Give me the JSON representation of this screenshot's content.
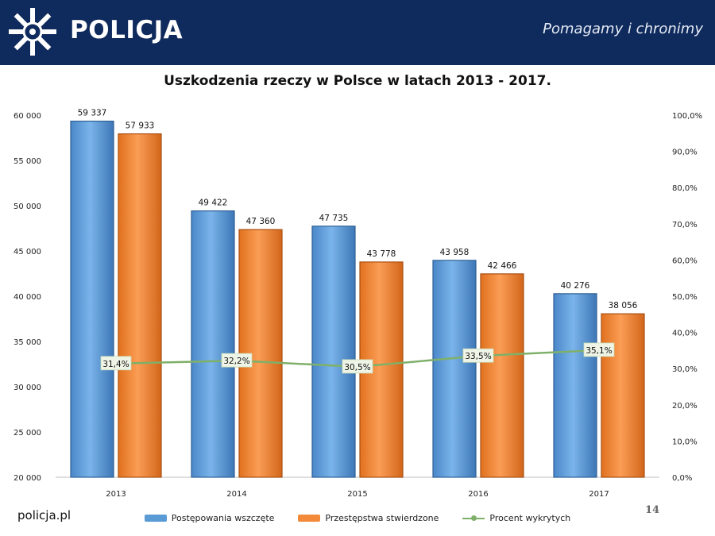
{
  "header": {
    "brand": "POLICJA",
    "slogan": "Pomagamy i chronimy",
    "colors": {
      "bar_bg": "#0f2a5c",
      "text": "#ffffff"
    }
  },
  "footer": {
    "site": "policja.pl",
    "page_number": "14"
  },
  "chart_data": {
    "type": "bar",
    "title": "Uszkodzenia rzeczy w Polsce w latach 2013 - 2017.",
    "categories": [
      "2013",
      "2014",
      "2015",
      "2016",
      "2017"
    ],
    "series": [
      {
        "name": "Postępowania wszczęte",
        "type": "bar",
        "axis": "left",
        "color": "#5b9bd5",
        "values": [
          59337,
          49422,
          47735,
          43958,
          40276
        ],
        "labels": [
          "59 337",
          "49 422",
          "47 735",
          "43 958",
          "40 276"
        ]
      },
      {
        "name": "Przestępstwa stwierdzone",
        "type": "bar",
        "axis": "left",
        "color": "#f28a3a",
        "values": [
          57933,
          47360,
          43778,
          42466,
          38056
        ],
        "labels": [
          "57 933",
          "47 360",
          "43 778",
          "42 466",
          "38 056"
        ]
      },
      {
        "name": "Procent wykrytych",
        "type": "line",
        "axis": "right",
        "color": "#7fb069",
        "values": [
          31.4,
          32.2,
          30.5,
          33.5,
          35.1
        ],
        "labels": [
          "31,4%",
          "32,2%",
          "30,5%",
          "33,5%",
          "35,1%"
        ]
      }
    ],
    "y_left": {
      "ylim": [
        20000,
        60000
      ],
      "ticks": [
        20000,
        25000,
        30000,
        35000,
        40000,
        45000,
        50000,
        55000,
        60000
      ],
      "tick_labels": [
        "20 000",
        "25 000",
        "30 000",
        "35 000",
        "40 000",
        "45 000",
        "50 000",
        "55 000",
        "60 000"
      ]
    },
    "y_right": {
      "ylim": [
        0,
        100
      ],
      "ticks": [
        0,
        10,
        20,
        30,
        40,
        50,
        60,
        70,
        80,
        90,
        100
      ],
      "tick_labels": [
        "0,0%",
        "10,0%",
        "20,0%",
        "30,0%",
        "40,0%",
        "50,0%",
        "60,0%",
        "70,0%",
        "80,0%",
        "90,0%",
        "100,0%"
      ]
    },
    "grid": false,
    "legend_position": "bottom"
  }
}
